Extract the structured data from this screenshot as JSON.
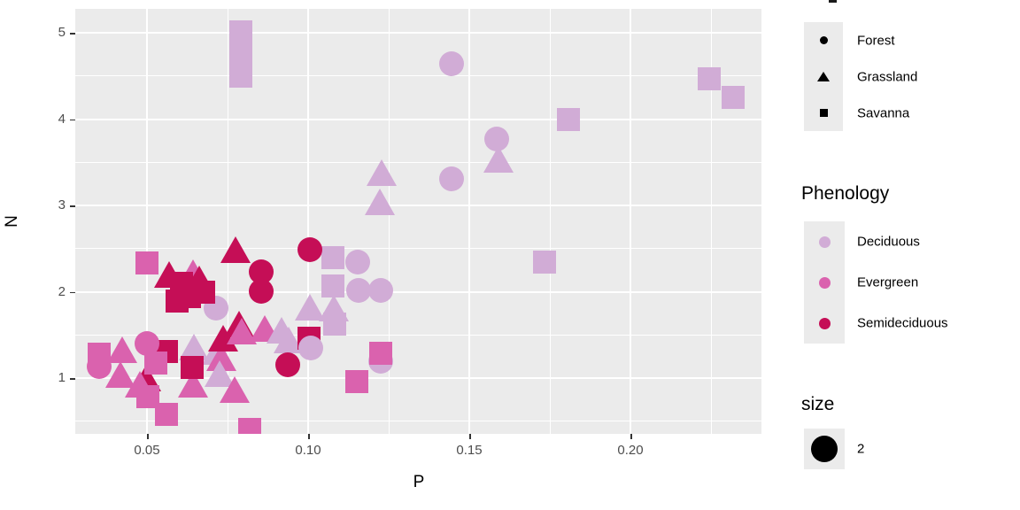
{
  "panel": {
    "background": "#EBEBEB",
    "grid_color": "#FFFFFF"
  },
  "axes": {
    "x": {
      "title": "P",
      "tick_labels": [
        "0.05",
        "0.10",
        "0.15",
        "0.20"
      ],
      "tick_values": [
        0.05,
        0.1,
        0.15,
        0.2
      ],
      "minor_values": [
        0.075,
        0.125,
        0.175,
        0.225
      ],
      "range": [
        0.0278,
        0.2407
      ]
    },
    "y": {
      "title": "N",
      "tick_labels": [
        "1",
        "2",
        "3",
        "4",
        "5"
      ],
      "tick_values": [
        1,
        2,
        3,
        4,
        5
      ],
      "minor_values": [
        0.5,
        1.5,
        2.5,
        3.5,
        4.5
      ],
      "range": [
        0.354,
        5.277
      ]
    }
  },
  "legends": {
    "vegetation": {
      "title_clipped_offscreen": true,
      "items": [
        {
          "label": "Forest",
          "shape": "circle"
        },
        {
          "label": "Grassland",
          "shape": "triangle"
        },
        {
          "label": "Savanna",
          "shape": "square"
        }
      ],
      "glyph_color": "#000000"
    },
    "phenology": {
      "title": "Phenology",
      "items": [
        {
          "label": "Deciduous",
          "color": "#D1ACD6"
        },
        {
          "label": "Evergreen",
          "color": "#DA62AE"
        },
        {
          "label": "Semideciduous",
          "color": "#C50E56"
        }
      ]
    },
    "size": {
      "title": "size",
      "items": [
        {
          "label": "2",
          "color": "#000000"
        }
      ]
    }
  },
  "chart_data": {
    "type": "scatter",
    "xlabel": "P",
    "ylabel": "N",
    "xlim": [
      0.0278,
      0.2407
    ],
    "ylim": [
      0.354,
      5.277
    ],
    "grid": "on",
    "legend_position": "right",
    "size_legend_value": 2,
    "colors": {
      "Deciduous": "#D1ACD6",
      "Evergreen": "#DA62AE",
      "Semideciduous": "#C50E56"
    },
    "shapes": {
      "Forest": "circle",
      "Grassland": "triangle",
      "Savanna": "square"
    },
    "points": [
      {
        "p": 0.0791,
        "n": 5.01,
        "phenology": "Deciduous",
        "vegetation": "Savanna"
      },
      {
        "p": 0.0791,
        "n": 4.75,
        "phenology": "Deciduous",
        "vegetation": "Savanna"
      },
      {
        "p": 0.0791,
        "n": 4.5,
        "phenology": "Deciduous",
        "vegetation": "Savanna"
      },
      {
        "p": 0.1445,
        "n": 4.64,
        "phenology": "Deciduous",
        "vegetation": "Forest"
      },
      {
        "p": 0.2244,
        "n": 4.47,
        "phenology": "Deciduous",
        "vegetation": "Savanna"
      },
      {
        "p": 0.2318,
        "n": 4.25,
        "phenology": "Deciduous",
        "vegetation": "Savanna"
      },
      {
        "p": 0.1808,
        "n": 4.0,
        "phenology": "Deciduous",
        "vegetation": "Savanna"
      },
      {
        "p": 0.1585,
        "n": 3.77,
        "phenology": "Deciduous",
        "vegetation": "Forest"
      },
      {
        "p": 0.1591,
        "n": 3.5,
        "phenology": "Deciduous",
        "vegetation": "Grassland"
      },
      {
        "p": 0.1445,
        "n": 3.31,
        "phenology": "Deciduous",
        "vegetation": "Forest"
      },
      {
        "p": 0.1228,
        "n": 3.35,
        "phenology": "Deciduous",
        "vegetation": "Grassland"
      },
      {
        "p": 0.1222,
        "n": 3.01,
        "phenology": "Deciduous",
        "vegetation": "Grassland"
      },
      {
        "p": 0.1733,
        "n": 2.34,
        "phenology": "Deciduous",
        "vegetation": "Savanna"
      },
      {
        "p": 0.1077,
        "n": 2.39,
        "phenology": "Deciduous",
        "vegetation": "Savanna"
      },
      {
        "p": 0.1154,
        "n": 2.34,
        "phenology": "Deciduous",
        "vegetation": "Forest"
      },
      {
        "p": 0.1077,
        "n": 2.07,
        "phenology": "Deciduous",
        "vegetation": "Savanna"
      },
      {
        "p": 0.1157,
        "n": 2.02,
        "phenology": "Deciduous",
        "vegetation": "Forest"
      },
      {
        "p": 0.1225,
        "n": 2.02,
        "phenology": "Deciduous",
        "vegetation": "Forest"
      },
      {
        "p": 0.1005,
        "n": 1.79,
        "phenology": "Deciduous",
        "vegetation": "Grassland"
      },
      {
        "p": 0.108,
        "n": 1.78,
        "phenology": "Deciduous",
        "vegetation": "Grassland"
      },
      {
        "p": 0.1082,
        "n": 1.63,
        "phenology": "Deciduous",
        "vegetation": "Savanna"
      },
      {
        "p": 0.0714,
        "n": 1.81,
        "phenology": "Deciduous",
        "vegetation": "Forest"
      },
      {
        "p": 0.05,
        "n": 2.33,
        "phenology": "Evergreen",
        "vegetation": "Savanna"
      },
      {
        "p": 0.0643,
        "n": 2.19,
        "phenology": "Evergreen",
        "vegetation": "Grassland"
      },
      {
        "p": 0.0775,
        "n": 2.46,
        "phenology": "Semideciduous",
        "vegetation": "Grassland"
      },
      {
        "p": 0.0569,
        "n": 2.17,
        "phenology": "Semideciduous",
        "vegetation": "Grassland"
      },
      {
        "p": 0.0607,
        "n": 2.1,
        "phenology": "Semideciduous",
        "vegetation": "Savanna"
      },
      {
        "p": 0.0662,
        "n": 2.12,
        "phenology": "Semideciduous",
        "vegetation": "Grassland"
      },
      {
        "p": 0.0632,
        "n": 1.94,
        "phenology": "Semideciduous",
        "vegetation": "Savanna"
      },
      {
        "p": 0.0676,
        "n": 2.0,
        "phenology": "Semideciduous",
        "vegetation": "Savanna"
      },
      {
        "p": 0.0593,
        "n": 1.89,
        "phenology": "Semideciduous",
        "vegetation": "Savanna"
      },
      {
        "p": 0.0854,
        "n": 2.23,
        "phenology": "Semideciduous",
        "vegetation": "Forest"
      },
      {
        "p": 0.0854,
        "n": 2.01,
        "phenology": "Semideciduous",
        "vegetation": "Forest"
      },
      {
        "p": 0.1005,
        "n": 2.49,
        "phenology": "Semideciduous",
        "vegetation": "Forest"
      },
      {
        "p": 0.0646,
        "n": 1.33,
        "phenology": "Deciduous",
        "vegetation": "Grassland"
      },
      {
        "p": 0.0717,
        "n": 1.28,
        "phenology": "Deciduous",
        "vegetation": "Grassland"
      },
      {
        "p": 0.0731,
        "n": 1.21,
        "phenology": "Evergreen",
        "vegetation": "Grassland"
      },
      {
        "p": 0.0725,
        "n": 1.02,
        "phenology": "Deciduous",
        "vegetation": "Grassland"
      },
      {
        "p": 0.056,
        "n": 1.31,
        "phenology": "Semideciduous",
        "vegetation": "Savanna"
      },
      {
        "p": 0.05,
        "n": 1.4,
        "phenology": "Evergreen",
        "vegetation": "Forest"
      },
      {
        "p": 0.0352,
        "n": 1.28,
        "phenology": "Evergreen",
        "vegetation": "Savanna"
      },
      {
        "p": 0.0352,
        "n": 1.13,
        "phenology": "Evergreen",
        "vegetation": "Forest"
      },
      {
        "p": 0.0423,
        "n": 1.3,
        "phenology": "Evergreen",
        "vegetation": "Grassland"
      },
      {
        "p": 0.0418,
        "n": 1.01,
        "phenology": "Evergreen",
        "vegetation": "Grassland"
      },
      {
        "p": 0.0497,
        "n": 0.97,
        "phenology": "Semideciduous",
        "vegetation": "Grassland"
      },
      {
        "p": 0.0478,
        "n": 0.9,
        "phenology": "Evergreen",
        "vegetation": "Grassland"
      },
      {
        "p": 0.0503,
        "n": 0.78,
        "phenology": "Evergreen",
        "vegetation": "Savanna"
      },
      {
        "p": 0.056,
        "n": 0.58,
        "phenology": "Evergreen",
        "vegetation": "Savanna"
      },
      {
        "p": 0.0643,
        "n": 0.9,
        "phenology": "Evergreen",
        "vegetation": "Grassland"
      },
      {
        "p": 0.0772,
        "n": 0.84,
        "phenology": "Evergreen",
        "vegetation": "Grassland"
      },
      {
        "p": 0.064,
        "n": 1.12,
        "phenology": "Semideciduous",
        "vegetation": "Savanna"
      },
      {
        "p": 0.0527,
        "n": 1.17,
        "phenology": "Evergreen",
        "vegetation": "Savanna"
      },
      {
        "p": 0.0736,
        "n": 1.43,
        "phenology": "Semideciduous",
        "vegetation": "Grassland"
      },
      {
        "p": 0.0786,
        "n": 1.6,
        "phenology": "Semideciduous",
        "vegetation": "Grassland"
      },
      {
        "p": 0.0794,
        "n": 1.51,
        "phenology": "Evergreen",
        "vegetation": "Grassland"
      },
      {
        "p": 0.0865,
        "n": 1.54,
        "phenology": "Evergreen",
        "vegetation": "Grassland"
      },
      {
        "p": 0.0918,
        "n": 1.52,
        "phenology": "Deciduous",
        "vegetation": "Grassland"
      },
      {
        "p": 0.094,
        "n": 1.41,
        "phenology": "Deciduous",
        "vegetation": "Grassland"
      },
      {
        "p": 0.0937,
        "n": 1.15,
        "phenology": "Semideciduous",
        "vegetation": "Forest"
      },
      {
        "p": 0.1003,
        "n": 1.46,
        "phenology": "Semideciduous",
        "vegetation": "Savanna"
      },
      {
        "p": 0.1008,
        "n": 1.35,
        "phenology": "Deciduous",
        "vegetation": "Forest"
      },
      {
        "p": 0.1225,
        "n": 1.19,
        "phenology": "Deciduous",
        "vegetation": "Forest"
      },
      {
        "p": 0.1225,
        "n": 1.29,
        "phenology": "Evergreen",
        "vegetation": "Savanna"
      },
      {
        "p": 0.1151,
        "n": 0.96,
        "phenology": "Evergreen",
        "vegetation": "Savanna"
      },
      {
        "p": 0.0819,
        "n": 0.41,
        "phenology": "Evergreen",
        "vegetation": "Savanna"
      }
    ]
  }
}
